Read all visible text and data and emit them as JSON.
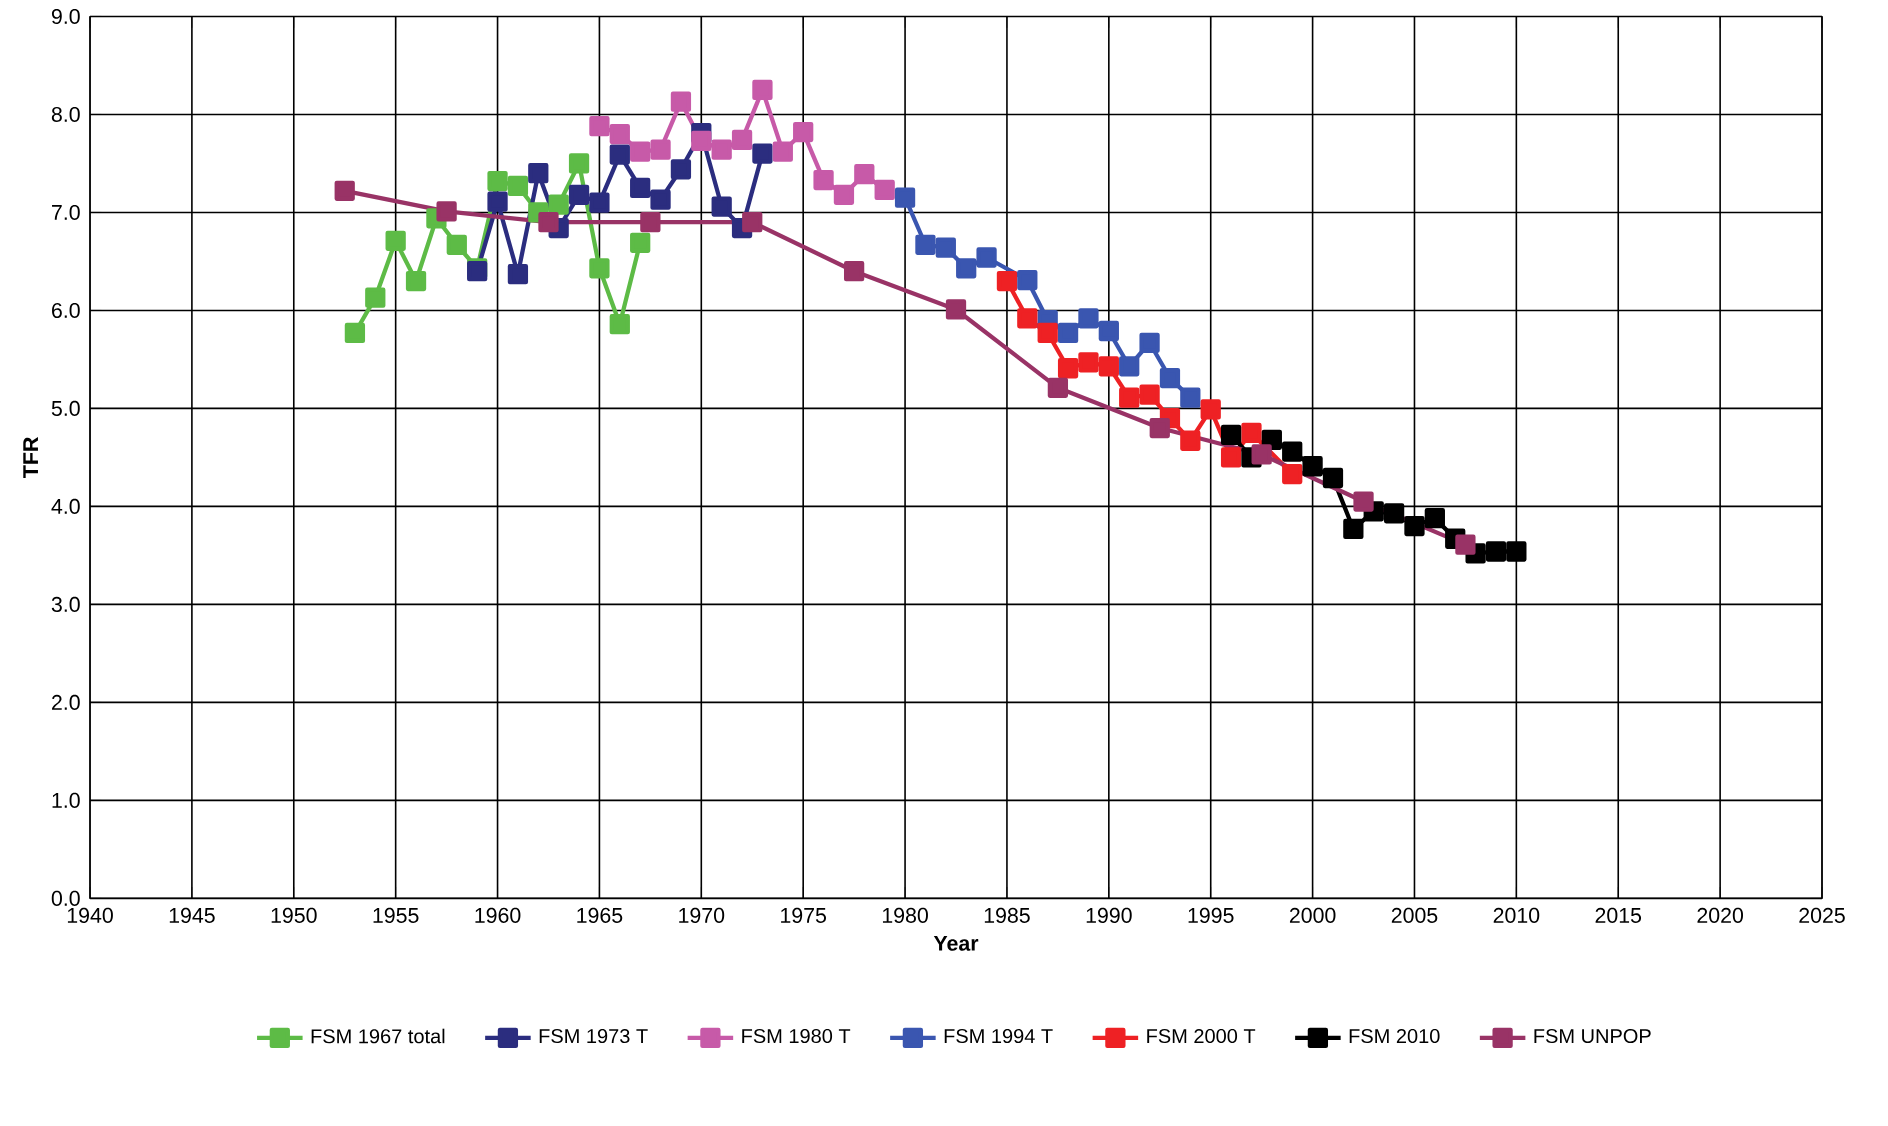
{
  "chart_data": {
    "type": "line",
    "xlabel": "Year",
    "ylabel": "TFR",
    "xlim": [
      1940,
      2025
    ],
    "ylim": [
      0,
      9
    ],
    "xticks": [
      1940,
      1945,
      1950,
      1955,
      1960,
      1965,
      1970,
      1975,
      1980,
      1985,
      1990,
      1995,
      2000,
      2005,
      2010,
      2015,
      2020,
      2025
    ],
    "yticks": [
      {
        "value": 0,
        "label": "0.0"
      },
      {
        "value": 1,
        "label": "1.0"
      },
      {
        "value": 2,
        "label": "2.0"
      },
      {
        "value": 3,
        "label": "3.0"
      },
      {
        "value": 4,
        "label": "4.0"
      },
      {
        "value": 5,
        "label": "5.0"
      },
      {
        "value": 6,
        "label": "6.0"
      },
      {
        "value": 7,
        "label": "7.0"
      },
      {
        "value": 8,
        "label": "8.0"
      },
      {
        "value": 9,
        "label": "9.0"
      }
    ],
    "grid": true,
    "legend": "bottom",
    "marker": "square",
    "line_style": "solid",
    "series": [
      {
        "name": "FSM 1967 total",
        "color": "#5dbb46",
        "x": [
          1953,
          1954,
          1955,
          1956,
          1957,
          1958,
          1959,
          1960,
          1961,
          1962,
          1963,
          1964,
          1965,
          1966,
          1967
        ],
        "values": [
          5.77,
          6.13,
          6.71,
          6.3,
          6.94,
          6.67,
          6.43,
          7.32,
          7.27,
          7.0,
          7.08,
          7.5,
          6.43,
          5.86,
          6.69
        ]
      },
      {
        "name": "FSM 1973 T",
        "color": "#2b2d7f",
        "x": [
          1959,
          1960,
          1961,
          1962,
          1963,
          1964,
          1965,
          1966,
          1967,
          1968,
          1969,
          1970,
          1971,
          1972,
          1973
        ],
        "values": [
          6.4,
          7.11,
          6.37,
          7.4,
          6.84,
          7.18,
          7.1,
          7.59,
          7.25,
          7.13,
          7.44,
          7.81,
          7.06,
          6.84,
          7.6
        ]
      },
      {
        "name": "FSM 1980 T",
        "color": "#c75aa8",
        "x": [
          1965,
          1966,
          1967,
          1968,
          1969,
          1970,
          1971,
          1972,
          1973,
          1974,
          1975,
          1976,
          1977,
          1978,
          1979
        ],
        "values": [
          7.88,
          7.8,
          7.62,
          7.64,
          8.13,
          7.73,
          7.64,
          7.74,
          8.25,
          7.62,
          7.82,
          7.33,
          7.18,
          7.39,
          7.23
        ]
      },
      {
        "name": "FSM 1994 T",
        "color": "#3a56b0",
        "x": [
          1980,
          1981,
          1982,
          1983,
          1984,
          1986,
          1987,
          1988,
          1989,
          1990,
          1991,
          1992,
          1993,
          1994
        ],
        "values": [
          7.15,
          6.67,
          6.64,
          6.43,
          6.54,
          6.31,
          5.9,
          5.77,
          5.92,
          5.79,
          5.43,
          5.67,
          5.31,
          5.11
        ]
      },
      {
        "name": "FSM 2000 T",
        "color": "#ee2124",
        "x": [
          1985,
          1986,
          1987,
          1988,
          1989,
          1990,
          1991,
          1992,
          1993,
          1994,
          1995,
          1996,
          1997,
          1999
        ],
        "values": [
          6.3,
          5.92,
          5.77,
          5.41,
          5.47,
          5.43,
          5.11,
          5.14,
          4.9,
          4.67,
          4.99,
          4.5,
          4.75,
          4.33
        ]
      },
      {
        "name": "FSM 2010",
        "color": "#000000",
        "x": [
          1996,
          1997,
          1998,
          1999,
          2000,
          2001,
          2002,
          2003,
          2004,
          2005,
          2006,
          2007,
          2008,
          2009,
          2010
        ],
        "values": [
          4.73,
          4.5,
          4.68,
          4.56,
          4.41,
          4.29,
          3.77,
          3.95,
          3.93,
          3.8,
          3.88,
          3.67,
          3.52,
          3.54,
          3.54
        ]
      },
      {
        "name": "FSM UNPOP",
        "color": "#993366",
        "x": [
          1952.5,
          1957.5,
          1962.5,
          1967.5,
          1972.5,
          1977.5,
          1982.5,
          1987.5,
          1992.5,
          1997.5,
          2002.5,
          2007.5
        ],
        "values": [
          7.22,
          7.01,
          6.9,
          6.9,
          6.9,
          6.4,
          6.01,
          5.21,
          4.8,
          4.53,
          4.05,
          3.61
        ]
      }
    ]
  }
}
